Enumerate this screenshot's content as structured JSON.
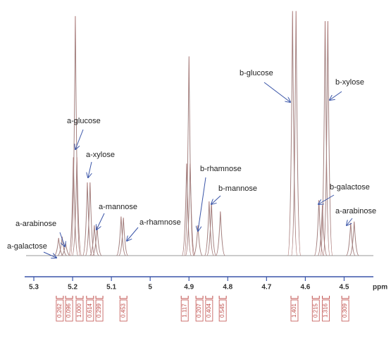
{
  "chart_data": {
    "type": "spectrum",
    "x_label": "ppm",
    "xlim": [
      5.32,
      4.43
    ],
    "xticks": [
      5.3,
      5.2,
      5.1,
      5.0,
      4.9,
      4.8,
      4.7,
      4.6,
      4.5
    ],
    "ylim": [
      0,
      100
    ],
    "color": "#9a9a9a",
    "axis_color": "#3a55a8",
    "peaks": {
      "x": [
        5.236,
        5.227,
        5.218,
        5.198,
        5.193,
        5.189,
        5.162,
        5.155,
        5.144,
        5.137,
        5.075,
        5.069,
        4.906,
        4.9,
        4.897,
        4.877,
        4.848,
        4.842,
        4.819,
        4.633,
        4.624,
        4.565,
        4.556,
        4.549,
        4.542,
        4.483,
        4.474
      ],
      "values": [
        7,
        7.5,
        5,
        39,
        95,
        39,
        29,
        29,
        12,
        11.5,
        15.5,
        15,
        36.5,
        79,
        36.5,
        12,
        21.5,
        21,
        17.5,
        97,
        97,
        22,
        20,
        93,
        93,
        13,
        13.5
      ]
    },
    "annotations": [
      "a-galactose",
      "a-arabinose",
      "a-glucose",
      "a-xylose",
      "a-mannose",
      "a-rhamnose",
      "b-rhamnose",
      "b-mannose",
      "b-glucose",
      "b-xylose",
      "b-galactose",
      "a-arabinose"
    ],
    "integrals": {
      "color": "#c0504d",
      "x": [
        5.233,
        5.209,
        5.182,
        5.155,
        5.131,
        5.069,
        4.911,
        4.873,
        4.848,
        4.813,
        4.628,
        4.573,
        4.547,
        4.497
      ],
      "values": [
        0.262,
        0.096,
        1.0,
        0.614,
        0.299,
        0.453,
        1.117,
        0.207,
        0.404,
        0.545,
        1.401,
        0.215,
        1.316,
        0.309
      ],
      "value_labels": [
        "0.262",
        "0.096",
        "1.000",
        "0.614",
        "0.299",
        "0.453",
        "1.117",
        "0.207",
        "0.404",
        "0.545",
        "1.401",
        "0.215",
        "1.316",
        "0.309"
      ]
    }
  }
}
